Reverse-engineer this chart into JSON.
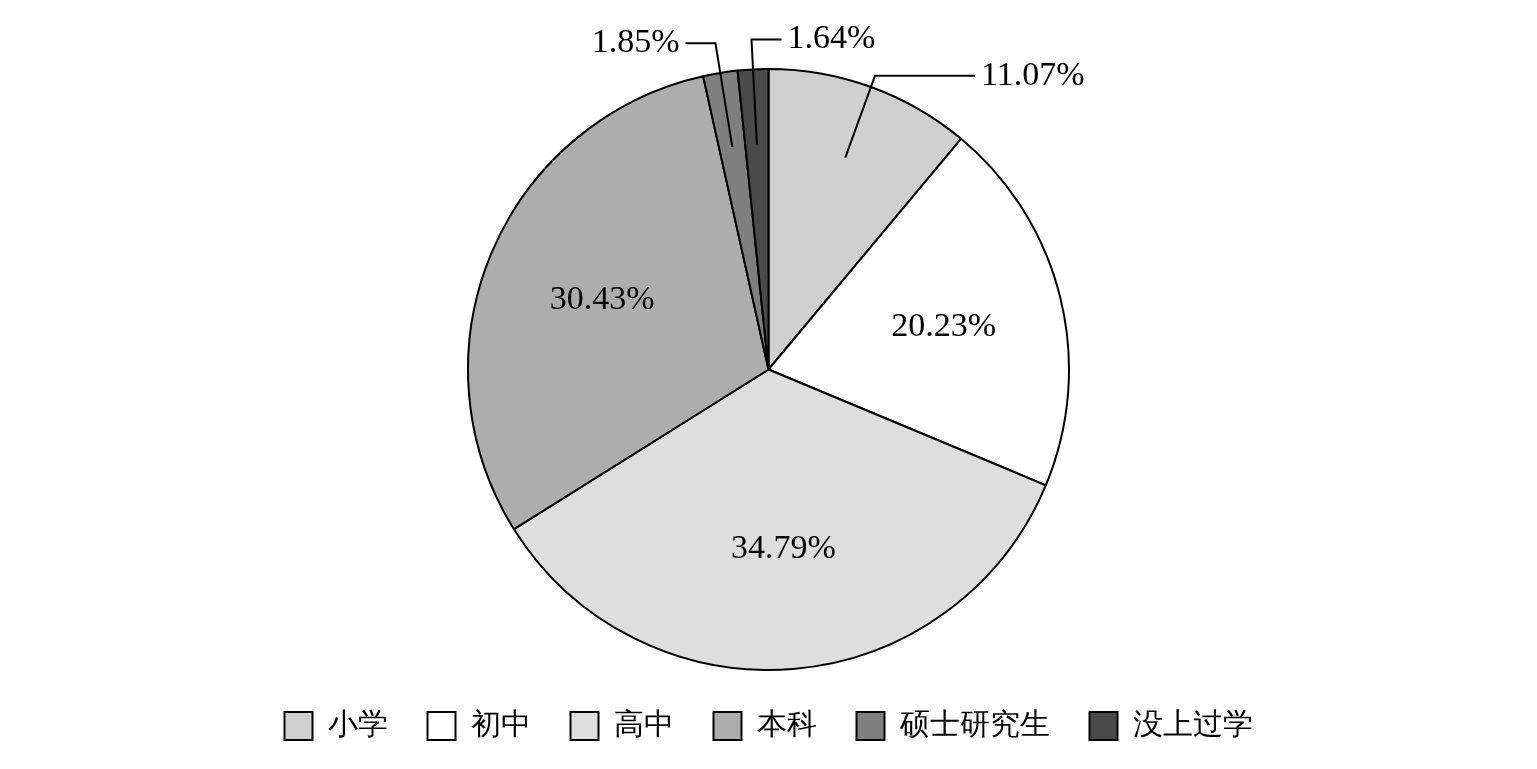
{
  "chart_data": {
    "type": "pie",
    "categories": [
      "小学",
      "初中",
      "高中",
      "本科",
      "硕士研究生",
      "没上过学"
    ],
    "values": [
      11.07,
      20.23,
      34.79,
      30.43,
      1.85,
      1.64
    ],
    "colors": [
      "#cfcfcf",
      "#ffffff",
      "#dedede",
      "#adadad",
      "#7f7f7f",
      "#4a4a4a"
    ],
    "value_labels": [
      "11.07%",
      "20.23%",
      "34.79%",
      "30.43%",
      "1.85%",
      "1.64%"
    ],
    "legend": "bottom"
  }
}
